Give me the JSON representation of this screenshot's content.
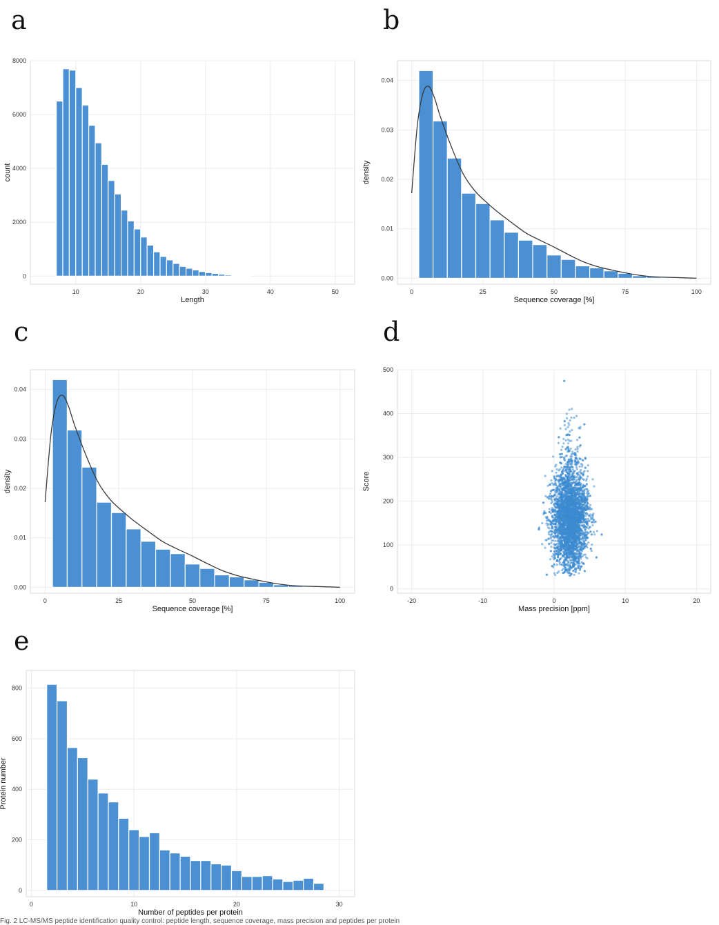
{
  "chart_data": [
    {
      "type": "bar",
      "letter": "a",
      "xlabel": "Length",
      "ylabel": "count",
      "xlim": [
        3,
        53
      ],
      "ylim": [
        -300,
        8000
      ],
      "xticks": [
        10,
        20,
        30,
        40,
        50
      ],
      "yticks": [
        0,
        2000,
        4000,
        6000,
        8000
      ],
      "bin_width": 1,
      "bin_start": 7,
      "values": [
        6500,
        7700,
        7650,
        7000,
        6350,
        5600,
        4950,
        4150,
        3550,
        3050,
        2450,
        2050,
        1750,
        1450,
        1150,
        900,
        730,
        600,
        470,
        360,
        290,
        230,
        170,
        130,
        100,
        70,
        45,
        25,
        12,
        6
      ]
    },
    {
      "type": "bar",
      "letter": "b",
      "xlabel": "Sequence coverage [%]",
      "ylabel": "density",
      "xlim": [
        -5,
        105
      ],
      "ylim": [
        -0.0012,
        0.044
      ],
      "xticks": [
        0,
        25,
        50,
        75,
        100
      ],
      "yticks": [
        0.0,
        0.01,
        0.02,
        0.03,
        0.04
      ],
      "ytick_labels": [
        "0.00",
        "0.01",
        "0.02",
        "0.03",
        "0.04"
      ],
      "bin_width": 5,
      "bin_start": 2.5,
      "values": [
        0.042,
        0.0318,
        0.0243,
        0.0172,
        0.0151,
        0.0118,
        0.0093,
        0.0077,
        0.0068,
        0.0047,
        0.0038,
        0.0025,
        0.0021,
        0.0015,
        0.001,
        0.0005,
        0.0004,
        0.0002,
        0.0001
      ],
      "density_curve": {
        "x": [
          0,
          2,
          4,
          6,
          8,
          10,
          14,
          18,
          22,
          26,
          30,
          35,
          40,
          45,
          50,
          55,
          60,
          65,
          70,
          75,
          80,
          85,
          90,
          95,
          100
        ],
        "y": [
          0.0172,
          0.031,
          0.0375,
          0.0388,
          0.0365,
          0.0328,
          0.0265,
          0.0212,
          0.0178,
          0.0155,
          0.0135,
          0.0113,
          0.0092,
          0.0077,
          0.0063,
          0.0048,
          0.0034,
          0.0024,
          0.0017,
          0.0011,
          0.0006,
          0.0003,
          0.0002,
          0.0001,
          0.0
        ]
      }
    },
    {
      "type": "bar",
      "letter": "c",
      "xlabel": "Sequence coverage [%]",
      "ylabel": "density",
      "xlim": [
        -5,
        105
      ],
      "ylim": [
        -0.0012,
        0.044
      ],
      "xticks": [
        0,
        25,
        50,
        75,
        100
      ],
      "yticks": [
        0.0,
        0.01,
        0.02,
        0.03,
        0.04
      ],
      "ytick_labels": [
        "0.00",
        "0.01",
        "0.02",
        "0.03",
        "0.04"
      ],
      "bin_width": 5,
      "bin_start": 2.5,
      "values": [
        0.042,
        0.0318,
        0.0243,
        0.0172,
        0.0151,
        0.0118,
        0.0093,
        0.0077,
        0.0068,
        0.0047,
        0.0038,
        0.0025,
        0.0021,
        0.0015,
        0.001,
        0.0005,
        0.0004,
        0.0002,
        0.0001
      ],
      "density_curve": {
        "x": [
          0,
          2,
          4,
          6,
          8,
          10,
          14,
          18,
          22,
          26,
          30,
          35,
          40,
          45,
          50,
          55,
          60,
          65,
          70,
          75,
          80,
          85,
          90,
          95,
          100
        ],
        "y": [
          0.0172,
          0.031,
          0.0375,
          0.0388,
          0.0365,
          0.0328,
          0.0265,
          0.0212,
          0.0178,
          0.0155,
          0.0135,
          0.0113,
          0.0092,
          0.0077,
          0.0063,
          0.0048,
          0.0034,
          0.0024,
          0.0017,
          0.0011,
          0.0006,
          0.0003,
          0.0002,
          0.0001,
          0.0
        ]
      }
    },
    {
      "type": "scatter",
      "letter": "d",
      "xlabel": "Mass precision [ppm]",
      "ylabel": "Score",
      "xlim": [
        -22,
        22
      ],
      "ylim": [
        -10,
        500
      ],
      "xticks": [
        -20,
        -10,
        0,
        10,
        20
      ],
      "yticks": [
        0,
        100,
        200,
        300,
        400,
        500
      ],
      "cloud": {
        "x_center": 2.2,
        "x_spread": 2.4,
        "y_center": 155,
        "y_min": 30,
        "y_max": 475,
        "n_points": 4000
      }
    },
    {
      "type": "bar",
      "letter": "e",
      "xlabel": "Number of peptides per protein",
      "ylabel": "Protein number",
      "xlim": [
        -0.5,
        31.5
      ],
      "ylim": [
        -25,
        870
      ],
      "xticks": [
        0,
        10,
        20,
        30
      ],
      "yticks": [
        0,
        200,
        400,
        600,
        800
      ],
      "bin_width": 1,
      "bin_start": 1.5,
      "values": [
        815,
        750,
        565,
        525,
        440,
        385,
        350,
        285,
        240,
        213,
        228,
        160,
        148,
        135,
        118,
        118,
        105,
        100,
        78,
        55,
        55,
        58,
        45,
        35,
        40,
        48,
        28
      ]
    }
  ],
  "colors": {
    "bar": "#4a90d2",
    "bar_edge": "#ffffff",
    "curve": "#3a3a3a",
    "point": "#3d8ad0",
    "grid": "#ebebeb",
    "frame": "#d9d9d9"
  },
  "caption": "Fig. 2  LC-MS/MS peptide identification quality control: peptide length, sequence coverage, mass precision and peptides per protein"
}
